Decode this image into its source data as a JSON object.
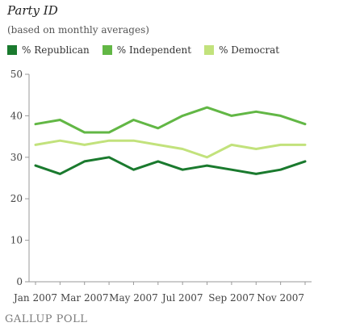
{
  "title": "Party ID",
  "subtitle": "(based on monthly averages)",
  "logo": "GALLUP POLL",
  "colors": {
    "republican": "#1a7a2e",
    "independent": "#62b745",
    "democrat": "#c2e27c",
    "axis": "#999999"
  },
  "chart_data": {
    "type": "line",
    "title": "Party ID",
    "subtitle": "(based on monthly averages)",
    "x": [
      "Jan 2007",
      "Feb 2007",
      "Mar 2007",
      "Apr 2007",
      "May 2007",
      "Jun 2007",
      "Jul 2007",
      "Aug 2007",
      "Sep 2007",
      "Oct 2007",
      "Nov 2007",
      "Dec 2007"
    ],
    "x_tick_labels": [
      "Jan 2007",
      "Mar 2007",
      "May 2007",
      "Jul 2007",
      "Sep 2007",
      "Nov 2007"
    ],
    "y_ticks": [
      "0",
      "10",
      "20",
      "30",
      "40",
      "50"
    ],
    "ylim": [
      0,
      50
    ],
    "grid": false,
    "legend_position": "top",
    "series": [
      {
        "name": "% Republican",
        "color": "#1a7a2e",
        "values": [
          28,
          26,
          29,
          30,
          27,
          29,
          27,
          28,
          27,
          26,
          27,
          29
        ]
      },
      {
        "name": "% Independent",
        "color": "#62b745",
        "values": [
          38,
          39,
          36,
          36,
          39,
          37,
          40,
          42,
          40,
          41,
          40,
          38
        ]
      },
      {
        "name": "% Democrat",
        "color": "#c2e27c",
        "values": [
          33,
          34,
          33,
          34,
          34,
          33,
          32,
          30,
          33,
          32,
          33,
          33
        ]
      }
    ]
  }
}
